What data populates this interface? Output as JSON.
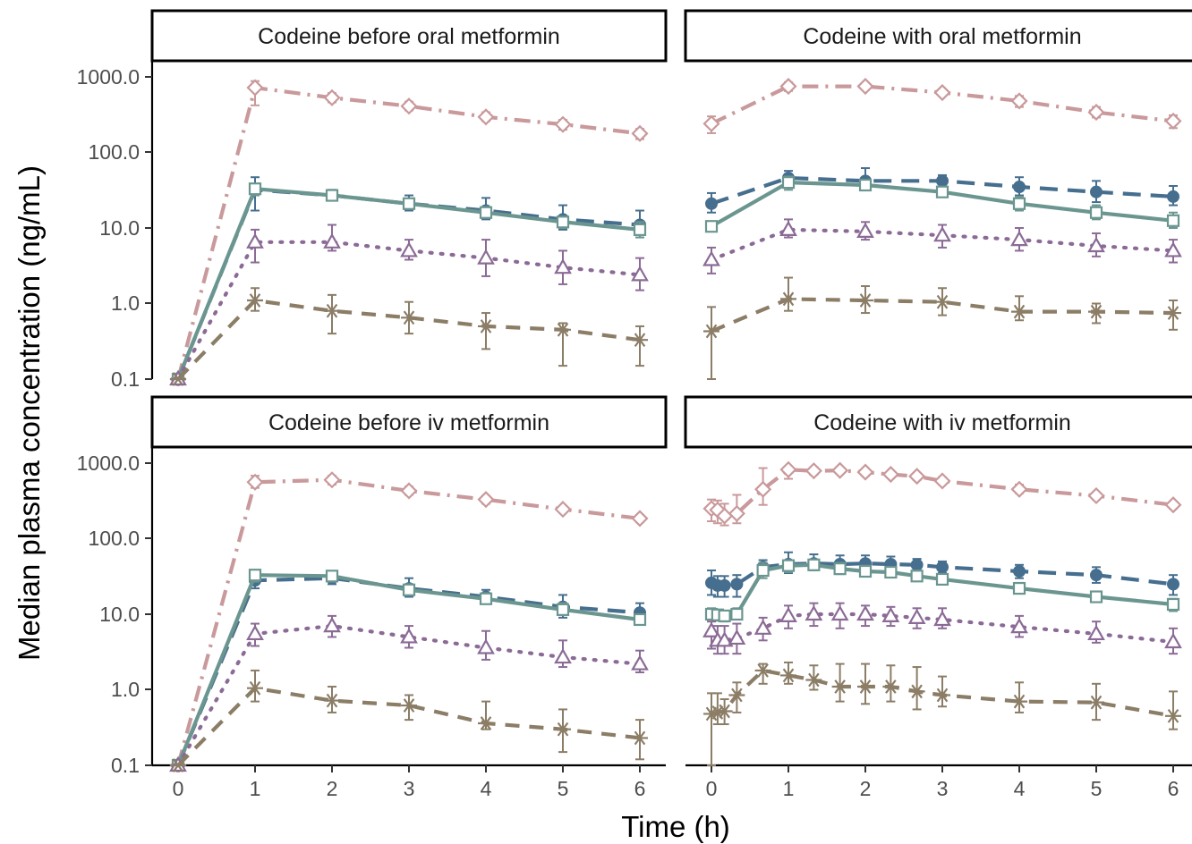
{
  "chart_data": {
    "type": "line",
    "xlabel": "Time (h)",
    "ylabel": "Median plasma concentration (ng/mL)",
    "yscale": "log10",
    "ylim": [
      0.1,
      1000
    ],
    "xlim": [
      0,
      6
    ],
    "y_ticks": [
      0.1,
      1,
      10,
      100,
      1000
    ],
    "y_tick_labels": [
      "0.1",
      "1.0",
      "10.0",
      "100.0",
      "1000.0"
    ],
    "x_ticks": [
      0,
      1,
      2,
      3,
      4,
      5,
      6
    ],
    "x_tick_labels": [
      "0",
      "1",
      "2",
      "3",
      "4",
      "5",
      "6"
    ],
    "grid": false,
    "legend": "none",
    "series_styles": [
      {
        "id": "s1",
        "color": "#c9999b",
        "dash": "dashdot",
        "marker": "diamond-open"
      },
      {
        "id": "s2",
        "color": "#466e8e",
        "dash": "longdash",
        "marker": "circle-filled"
      },
      {
        "id": "s3",
        "color": "#6b9690",
        "dash": "solid",
        "marker": "square-open"
      },
      {
        "id": "s4",
        "color": "#8b6b96",
        "dash": "dotted",
        "marker": "triangle-open"
      },
      {
        "id": "s5",
        "color": "#8b7d66",
        "dash": "dashed",
        "marker": "asterisk"
      }
    ],
    "panels": [
      {
        "title": "Codeine before oral metformin",
        "series": [
          {
            "style": "s1",
            "x": [
              0,
              1,
              2,
              3,
              4,
              5,
              6
            ],
            "y": [
              0.1,
              720,
              530,
              410,
              295,
              235,
              178
            ],
            "lo": [
              0.1,
              420,
              460,
              360,
              260,
              200,
              150
            ],
            "hi": [
              0.1,
              880,
              610,
              470,
              340,
              270,
              205
            ]
          },
          {
            "style": "s2",
            "x": [
              0,
              1,
              2,
              3,
              4,
              5,
              6
            ],
            "y": [
              0.1,
              32,
              27,
              21,
              17,
              13,
              11
            ],
            "lo": [
              0.1,
              17,
              23,
              17,
              13,
              9.5,
              7.5
            ],
            "hi": [
              0.1,
              47,
              32,
              27,
              25,
              20,
              17
            ]
          },
          {
            "style": "s3",
            "x": [
              0,
              1,
              2,
              3,
              4,
              5,
              6
            ],
            "y": [
              0.1,
              33,
              27,
              21,
              16,
              12,
              9.5
            ],
            "lo": [
              0.1,
              27,
              24,
              18,
              14,
              10,
              7.5
            ],
            "hi": [
              0.1,
              37,
              31,
              24,
              19,
              14,
              12
            ]
          },
          {
            "style": "s4",
            "x": [
              0,
              1,
              2,
              3,
              4,
              5,
              6
            ],
            "y": [
              0.1,
              6.5,
              6.5,
              5.0,
              4.0,
              3.0,
              2.4
            ],
            "lo": [
              0.1,
              3.5,
              5.0,
              3.8,
              2.3,
              1.8,
              1.5
            ],
            "hi": [
              0.1,
              9.5,
              11,
              7.0,
              7.0,
              5.0,
              4.0
            ]
          },
          {
            "style": "s5",
            "x": [
              0,
              1,
              2,
              3,
              4,
              5,
              6
            ],
            "y": [
              0.1,
              1.1,
              0.8,
              0.65,
              0.5,
              0.45,
              0.33
            ],
            "lo": [
              0.1,
              0.8,
              0.4,
              0.4,
              0.25,
              0.15,
              0.15
            ],
            "hi": [
              0.1,
              1.6,
              1.3,
              1.05,
              0.75,
              0.55,
              0.5
            ]
          }
        ]
      },
      {
        "title": "Codeine with oral metformin",
        "series": [
          {
            "style": "s1",
            "x": [
              0,
              1,
              2,
              3,
              4,
              5,
              6
            ],
            "y": [
              240,
              750,
              750,
              620,
              480,
              340,
              260
            ],
            "lo": [
              180,
              650,
              680,
              560,
              400,
              290,
              210
            ],
            "hi": [
              300,
              850,
              820,
              680,
              560,
              400,
              310
            ]
          },
          {
            "style": "s2",
            "x": [
              0,
              1,
              2,
              3,
              4,
              5,
              6
            ],
            "y": [
              21,
              46,
              42,
              42,
              35,
              30,
              26
            ],
            "lo": [
              16,
              37,
              33,
              35,
              27,
              22,
              20
            ],
            "hi": [
              29,
              57,
              62,
              50,
              47,
              42,
              36
            ]
          },
          {
            "style": "s3",
            "x": [
              0,
              1,
              2,
              3,
              4,
              5,
              6
            ],
            "y": [
              10.5,
              40,
              37,
              30,
              21,
              16,
              12.5
            ],
            "lo": [
              9.5,
              32,
              32,
              26,
              17,
              13,
              10
            ],
            "hi": [
              12,
              48,
              42,
              35,
              26,
              20,
              16
            ]
          },
          {
            "style": "s4",
            "x": [
              0,
              1,
              2,
              3,
              4,
              5,
              6
            ],
            "y": [
              3.8,
              9.5,
              9.0,
              8.0,
              7.0,
              5.8,
              5.0
            ],
            "lo": [
              2.5,
              7.5,
              7.0,
              5.5,
              5.0,
              4.2,
              3.5
            ],
            "hi": [
              5.5,
              13,
              12,
              11,
              10,
              8.5,
              7.0
            ]
          },
          {
            "style": "s5",
            "x": [
              0,
              1,
              2,
              3,
              4,
              5,
              6
            ],
            "y": [
              0.43,
              1.15,
              1.1,
              1.05,
              0.78,
              0.78,
              0.75
            ],
            "lo": [
              0.1,
              0.8,
              0.75,
              0.7,
              0.6,
              0.55,
              0.45
            ],
            "hi": [
              0.9,
              2.2,
              1.7,
              1.6,
              1.25,
              1.0,
              1.1
            ]
          }
        ]
      },
      {
        "title": "Codeine before iv metformin",
        "series": [
          {
            "style": "s1",
            "x": [
              0,
              1,
              2,
              3,
              4,
              5,
              6
            ],
            "y": [
              0.1,
              560,
              600,
              430,
              330,
              245,
              185
            ],
            "lo": [
              0.1,
              470,
              520,
              380,
              290,
              220,
              165
            ],
            "hi": [
              0.1,
              680,
              680,
              490,
              370,
              265,
              205
            ]
          },
          {
            "style": "s2",
            "x": [
              0,
              1,
              2,
              3,
              4,
              5,
              6
            ],
            "y": [
              0.1,
              28,
              30,
              22,
              17,
              12.5,
              10.5
            ],
            "lo": [
              0.1,
              22,
              25,
              17,
              14,
              9,
              8
            ],
            "hi": [
              0.1,
              36,
              37,
              30,
              21,
              18,
              14
            ]
          },
          {
            "style": "s3",
            "x": [
              0,
              1,
              2,
              3,
              4,
              5,
              6
            ],
            "y": [
              0.1,
              33,
              32,
              21,
              16,
              11.5,
              8.5
            ],
            "lo": [
              0.1,
              27,
              27,
              18,
              14,
              10,
              7.5
            ],
            "hi": [
              0.1,
              38,
              37,
              25,
              19,
              14,
              10
            ]
          },
          {
            "style": "s4",
            "x": [
              0,
              1,
              2,
              3,
              4,
              5,
              6
            ],
            "y": [
              0.1,
              5.5,
              7.0,
              5.0,
              3.6,
              2.7,
              2.2
            ],
            "lo": [
              0.1,
              3.8,
              5.0,
              3.6,
              2.5,
              2.0,
              1.7
            ],
            "hi": [
              0.1,
              7.5,
              9.5,
              7.0,
              6.0,
              4.5,
              3.3
            ]
          },
          {
            "style": "s5",
            "x": [
              0,
              1,
              2,
              3,
              4,
              5,
              6
            ],
            "y": [
              0.1,
              1.05,
              0.72,
              0.62,
              0.36,
              0.3,
              0.23
            ],
            "lo": [
              0.1,
              0.7,
              0.5,
              0.4,
              0.3,
              0.15,
              0.12
            ],
            "hi": [
              0.1,
              1.8,
              1.1,
              0.85,
              0.7,
              0.55,
              0.4
            ]
          }
        ]
      },
      {
        "title": "Codeine with iv metformin",
        "series": [
          {
            "style": "s1",
            "x": [
              0,
              0.08,
              0.17,
              0.33,
              0.67,
              1,
              1.33,
              1.67,
              2,
              2.33,
              2.67,
              3,
              4,
              5,
              6
            ],
            "y": [
              250,
              240,
              200,
              215,
              450,
              820,
              790,
              800,
              760,
              710,
              670,
              580,
              450,
              370,
              280
            ],
            "lo": [
              170,
              160,
              150,
              160,
              280,
              620,
              700,
              730,
              680,
              640,
              600,
              520,
              400,
              330,
              250
            ],
            "hi": [
              330,
              320,
              290,
              380,
              860,
              900,
              880,
              870,
              830,
              780,
              740,
              650,
              520,
              410,
              310
            ]
          },
          {
            "style": "s2",
            "x": [
              0,
              0.08,
              0.17,
              0.33,
              0.67,
              1,
              1.33,
              1.67,
              2,
              2.33,
              2.67,
              3,
              4,
              5,
              6
            ],
            "y": [
              26,
              24,
              24,
              25,
              42,
              46,
              47,
              46,
              47,
              46,
              45,
              42,
              37,
              33,
              25
            ],
            "lo": [
              18,
              17,
              17,
              17,
              33,
              35,
              38,
              37,
              36,
              36,
              38,
              35,
              30,
              26,
              18
            ],
            "hi": [
              38,
              32,
              32,
              33,
              52,
              66,
              62,
              60,
              60,
              58,
              54,
              50,
              45,
              42,
              33
            ]
          },
          {
            "style": "s3",
            "x": [
              0,
              0.08,
              0.17,
              0.33,
              0.67,
              1,
              1.33,
              1.67,
              2,
              2.33,
              2.67,
              3,
              4,
              5,
              6
            ],
            "y": [
              10,
              9.8,
              9.5,
              10,
              38,
              44,
              45,
              40,
              37,
              36,
              32,
              29,
              22,
              17,
              13.5
            ],
            "lo": [
              8.5,
              8.2,
              8.0,
              8.5,
              30,
              36,
              38,
              34,
              32,
              31,
              28,
              25,
              19,
              15,
              11
            ],
            "hi": [
              12,
              11.5,
              11,
              12,
              48,
              52,
              53,
              48,
              44,
              42,
              38,
              34,
              26,
              20,
              16
            ]
          },
          {
            "style": "s4",
            "x": [
              0,
              0.08,
              0.17,
              0.33,
              0.67,
              1,
              1.33,
              1.67,
              2,
              2.33,
              2.67,
              3,
              4,
              5,
              6
            ],
            "y": [
              6.0,
              4.5,
              4.5,
              4.8,
              6.5,
              9.5,
              10,
              10,
              10,
              9.5,
              9.0,
              8.5,
              6.8,
              5.5,
              4.3
            ],
            "lo": [
              3.5,
              3.0,
              3.0,
              3.0,
              4.5,
              6.5,
              7.0,
              6.5,
              7.0,
              7.0,
              6.5,
              6.5,
              5.0,
              4.2,
              3.0
            ],
            "hi": [
              8.0,
              7.0,
              7.0,
              7.5,
              9.0,
              13,
              14,
              14,
              13,
              12.5,
              12,
              12,
              9.5,
              8.0,
              6.5
            ]
          },
          {
            "style": "s5",
            "x": [
              0,
              0.08,
              0.17,
              0.33,
              0.67,
              1,
              1.33,
              1.67,
              2,
              2.33,
              2.67,
              3,
              4,
              5,
              6
            ],
            "y": [
              0.48,
              0.5,
              0.52,
              0.85,
              1.8,
              1.55,
              1.35,
              1.1,
              1.1,
              1.1,
              0.95,
              0.85,
              0.7,
              0.68,
              0.45
            ],
            "lo": [
              0.1,
              0.35,
              0.35,
              0.5,
              1.2,
              1.2,
              1.0,
              0.7,
              0.65,
              0.7,
              0.55,
              0.6,
              0.5,
              0.4,
              0.3
            ],
            "hi": [
              0.9,
              0.9,
              0.75,
              1.25,
              2.2,
              2.3,
              2.1,
              2.2,
              2.2,
              2.1,
              2.0,
              1.5,
              1.25,
              1.2,
              0.95
            ]
          }
        ]
      }
    ]
  }
}
